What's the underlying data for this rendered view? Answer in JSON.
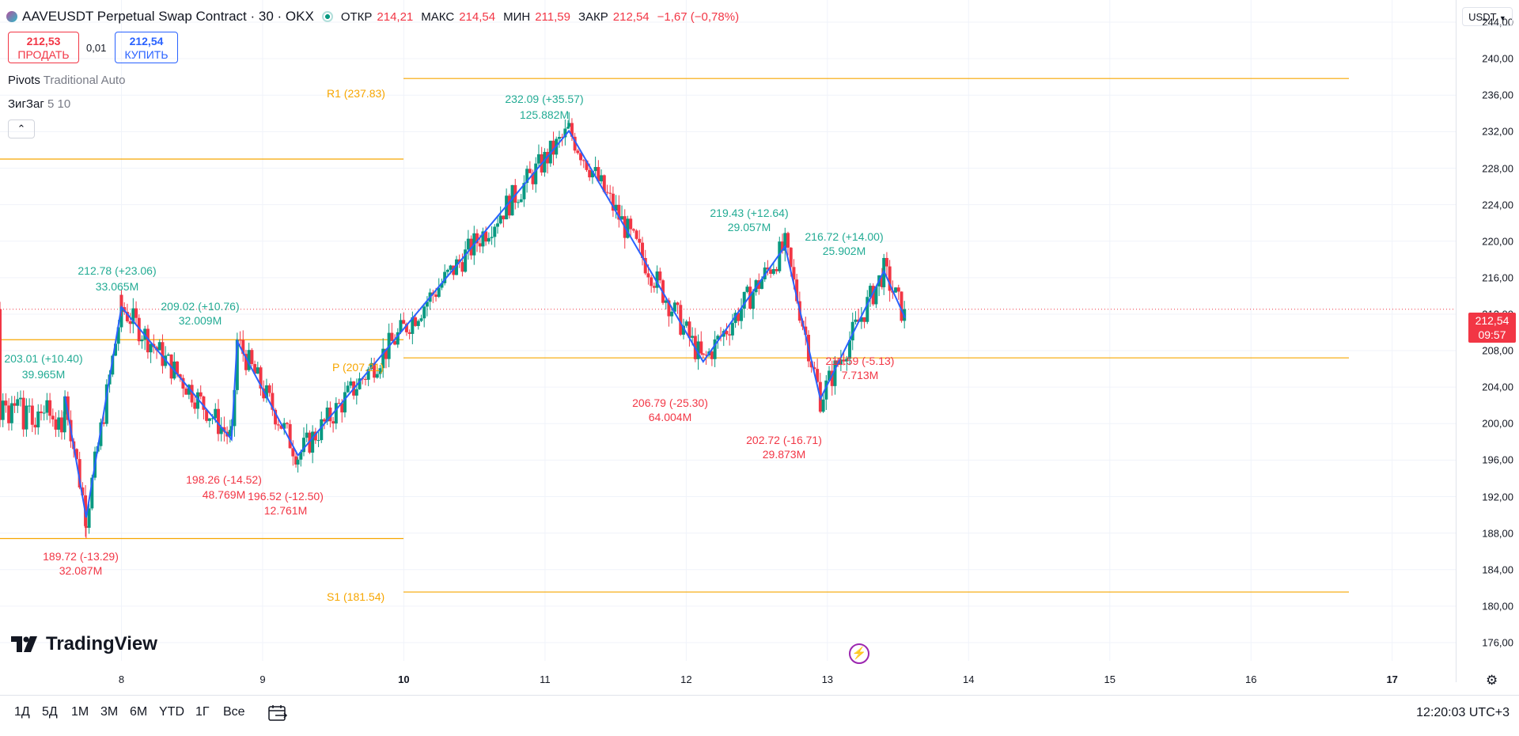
{
  "header": {
    "symbol": "AAVEUSDT Perpetual Swap Contract · 30 · OKX",
    "open_label": "ОТКР",
    "open": "214,21",
    "high_label": "МАКС",
    "high": "214,54",
    "low_label": "МИН",
    "low": "211,59",
    "close_label": "ЗАКР",
    "close": "212,54",
    "change": "−1,67 (−0,78%)"
  },
  "trade": {
    "sell_price": "212,53",
    "sell_label": "ПРОДАТЬ",
    "spread": "0,01",
    "buy_price": "212,54",
    "buy_label": "КУПИТЬ"
  },
  "indicators": [
    {
      "name": "Pivots",
      "args": "Traditional Auto"
    },
    {
      "name": "ЗигЗаг",
      "args": "5 10"
    }
  ],
  "currency": "USDT",
  "last_price": {
    "price": "212,54",
    "countdown": "09:57"
  },
  "price_axis": [
    "244,00",
    "240,00",
    "236,00",
    "232,00",
    "228,00",
    "224,00",
    "220,00",
    "216,00",
    "212,00",
    "208,00",
    "204,00",
    "200,00",
    "196,00",
    "192,00",
    "188,00",
    "184,00",
    "180,00",
    "176,00"
  ],
  "time_axis": [
    "8",
    "9",
    "10",
    "11",
    "12",
    "13",
    "14",
    "15",
    "16",
    "17"
  ],
  "pivots": {
    "r1": "R1 (237.83)",
    "p": "P (207.21)",
    "s1": "S1 (181.54)"
  },
  "zigzag_labels": [
    {
      "price": "203.01 (+10.40)",
      "vol": "39.965M",
      "up": true
    },
    {
      "price": "212.78 (+23.06)",
      "vol": "33.065M",
      "up": true
    },
    {
      "price": "209.02 (+10.76)",
      "vol": "32.009M",
      "up": true
    },
    {
      "price": "232.09 (+35.57)",
      "vol": "125.882M",
      "up": true
    },
    {
      "price": "219.43 (+12.64)",
      "vol": "29.057M",
      "up": true
    },
    {
      "price": "216.72 (+14.00)",
      "vol": "25.902M",
      "up": true
    },
    {
      "price": "189.72 (-13.29)",
      "vol": "32.087M",
      "up": false
    },
    {
      "price": "198.26 (-14.52)",
      "vol": "48.769M",
      "up": false
    },
    {
      "price": "196.52 (-12.50)",
      "vol": "12.761M",
      "up": false
    },
    {
      "price": "206.79 (-25.30)",
      "vol": "64.004M",
      "up": false
    },
    {
      "price": "202.72 (-16.71)",
      "vol": "29.873M",
      "up": false
    },
    {
      "price": "211.59 (-5.13)",
      "vol": "7.713M",
      "up": false
    }
  ],
  "chart_data": {
    "type": "line",
    "series": [
      {
        "name": "ЗигЗаг",
        "x": [
          7.6,
          7.75,
          8.0,
          8.78,
          8.82,
          9.25,
          11.17,
          12.12,
          12.7,
          12.95,
          13.4,
          13.55
        ],
        "values": [
          203.01,
          189.72,
          212.78,
          198.26,
          209.02,
          196.52,
          232.09,
          206.79,
          219.43,
          202.72,
          216.72,
          211.59
        ]
      }
    ],
    "ylim": [
      174,
      246
    ],
    "xlim": [
      7.14,
      17.45
    ]
  },
  "branding": {
    "logo": "TradingView"
  },
  "bottom": {
    "timeframes": [
      "1Д",
      "5Д",
      "1М",
      "3М",
      "6М",
      "YTD",
      "1Г",
      "Все"
    ],
    "clock": "12:20:03 UTC+3"
  }
}
